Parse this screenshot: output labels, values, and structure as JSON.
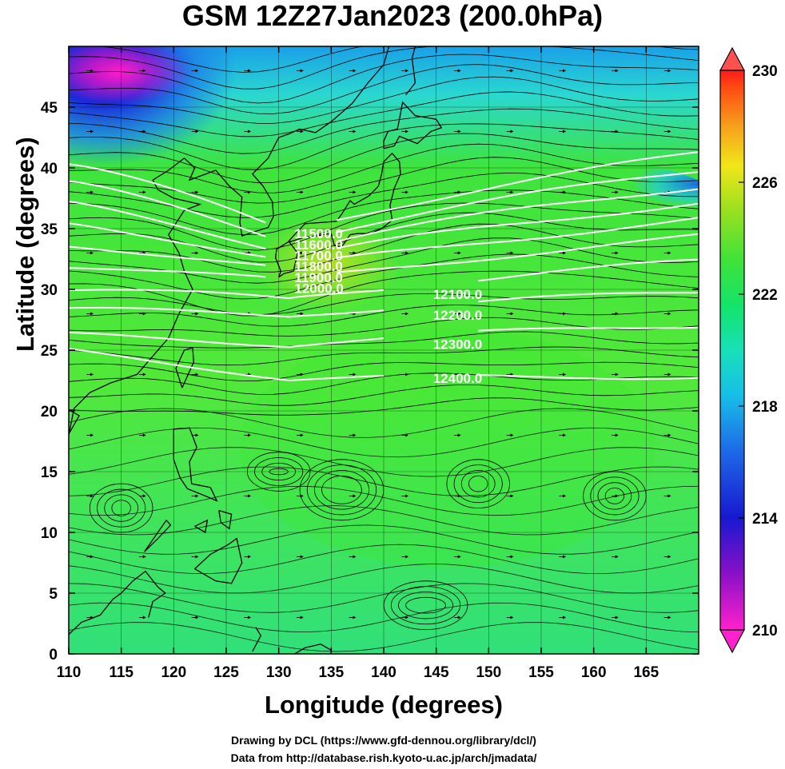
{
  "title": "GSM 12Z27Jan2023 (200.0hPa)",
  "xlabel": "Longitude (degrees)",
  "ylabel": "Latitude  (degrees)",
  "credit_line1": "Drawing by DCL (https://www.gfd-dennou.org/library/dcl/)",
  "credit_line2": "Data from http://database.rish.kyoto-u.ac.jp/arch/jmadata/",
  "map": {
    "lon_range": [
      110,
      170
    ],
    "lat_range": [
      0,
      50
    ],
    "lon_ticks": [
      "110",
      "115",
      "120",
      "125",
      "130",
      "135",
      "140",
      "145",
      "150",
      "155",
      "160",
      "165"
    ],
    "lat_ticks": [
      "0",
      "5",
      "10",
      "15",
      "20",
      "25",
      "30",
      "35",
      "40",
      "45"
    ],
    "colorbar": {
      "range": [
        210,
        230
      ],
      "tick_labels": [
        "210",
        "214",
        "218",
        "222",
        "226",
        "230"
      ],
      "colors": [
        "#ff22cc",
        "#8a10c8",
        "#1818d0",
        "#1e6ae8",
        "#17bfe8",
        "#18e0b8",
        "#14e46a",
        "#3fe23a",
        "#9ae020",
        "#f2e61a",
        "#f6a01c",
        "#ff4a12",
        "#ff1a1a"
      ]
    },
    "contours": [
      {
        "label": "11500.0"
      },
      {
        "label": "11600.0"
      },
      {
        "label": "11700.0"
      },
      {
        "label": "11800.0"
      },
      {
        "label": "11900.0"
      },
      {
        "label": "12000.0"
      },
      {
        "label": "12100.0"
      },
      {
        "label": "12200.0"
      },
      {
        "label": "12300.0"
      },
      {
        "label": "12400.0"
      }
    ],
    "contour_color": "#ffffff"
  }
}
